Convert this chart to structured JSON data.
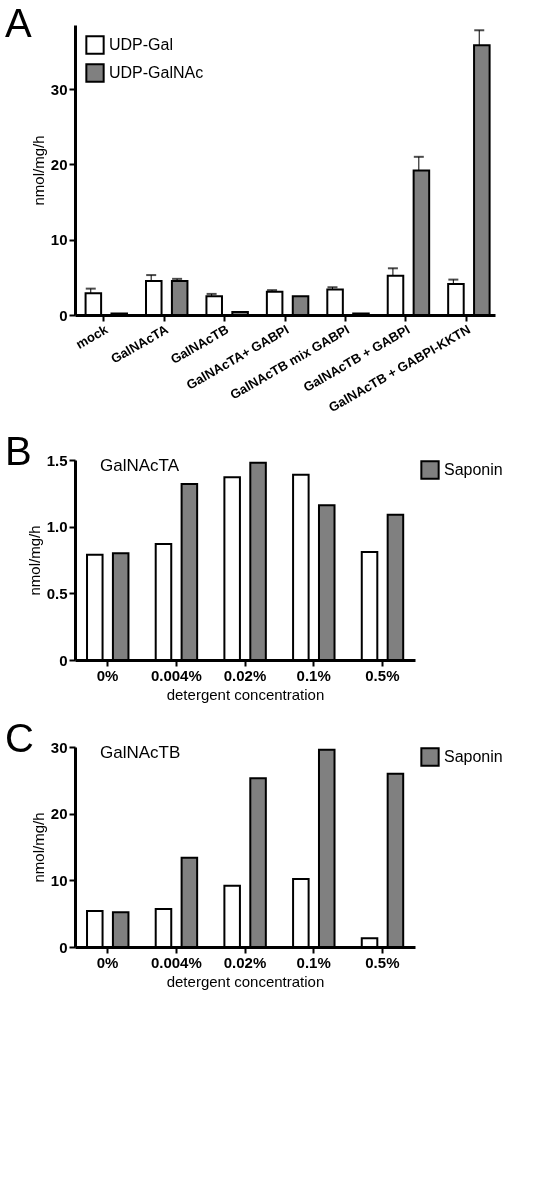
{
  "chart_data": [
    {
      "type": "bar",
      "title": "A",
      "ylabel": "nmol/mg/h",
      "categories": [
        "mock",
        "GalNAcTA",
        "GalNAcTB",
        "GalNAcTA+ GABPI",
        "GalNAcTB mix GABPI",
        "GalNAcTB + GABPI",
        "GalNAcTB + GABPI-KKTN"
      ],
      "series": [
        {
          "name": "UDP-Gal",
          "color": "#ffffff",
          "values": [
            2.9,
            4.5,
            2.5,
            3.1,
            3.4,
            5.2,
            4.1
          ],
          "errors": [
            [
              2.9,
              3.5
            ],
            [
              4.5,
              5.3
            ],
            [
              2.5,
              2.8
            ],
            [
              3.1,
              3.3
            ],
            [
              3.4,
              3.7
            ],
            [
              5.2,
              6.2
            ],
            [
              4.1,
              4.7
            ]
          ]
        },
        {
          "name": "UDP-GalNAc",
          "color": "#808080",
          "values": [
            0.2,
            4.5,
            0.4,
            2.5,
            0.2,
            19.2,
            35.8
          ],
          "errors": [
            null,
            [
              4.5,
              4.8
            ],
            null,
            null,
            null,
            [
              19.2,
              21.0
            ],
            [
              35.8,
              37.8
            ]
          ]
        }
      ],
      "ylim": [
        0,
        38.5
      ],
      "yticks": [
        0,
        10,
        20,
        30
      ],
      "grid": false,
      "legend": "top left"
    },
    {
      "type": "bar",
      "title": "B",
      "xlabel": "detergent concentration",
      "ylabel": "nmol/mg/h",
      "annotations": [
        "GalNAcTA"
      ],
      "categories": [
        "0%",
        "0.004%",
        "0.02%",
        "0.1%",
        "0.5%"
      ],
      "series": [
        {
          "color": "#ffffff",
          "values": [
            0.79,
            0.87,
            1.37,
            1.39,
            0.81
          ]
        },
        {
          "name": "Saponin",
          "color": "#808080",
          "values": [
            0.8,
            1.32,
            1.48,
            1.16,
            1.09
          ]
        }
      ],
      "ylim": [
        0,
        1.5
      ],
      "yticks": [
        0,
        0.5,
        {
          "value": 1,
          "label": "1.0"
        },
        1.5
      ],
      "grid": false,
      "legend": "right"
    },
    {
      "type": "bar",
      "title": "C",
      "xlabel": "detergent concentration",
      "ylabel": "nmol/mg/h",
      "annotations": [
        "GalNAcTB"
      ],
      "categories": [
        "0%",
        "0.004%",
        "0.02%",
        "0.1%",
        "0.5%"
      ],
      "series": [
        {
          "color": "#ffffff",
          "values": [
            5.4,
            5.7,
            9.2,
            10.2,
            1.3
          ]
        },
        {
          "name": "Saponin",
          "color": "#808080",
          "values": [
            5.2,
            13.4,
            25.3,
            29.6,
            26.0
          ]
        }
      ],
      "ylim": [
        0,
        30
      ],
      "yticks": [
        0,
        10,
        20,
        30
      ],
      "grid": false,
      "legend": "right"
    }
  ]
}
